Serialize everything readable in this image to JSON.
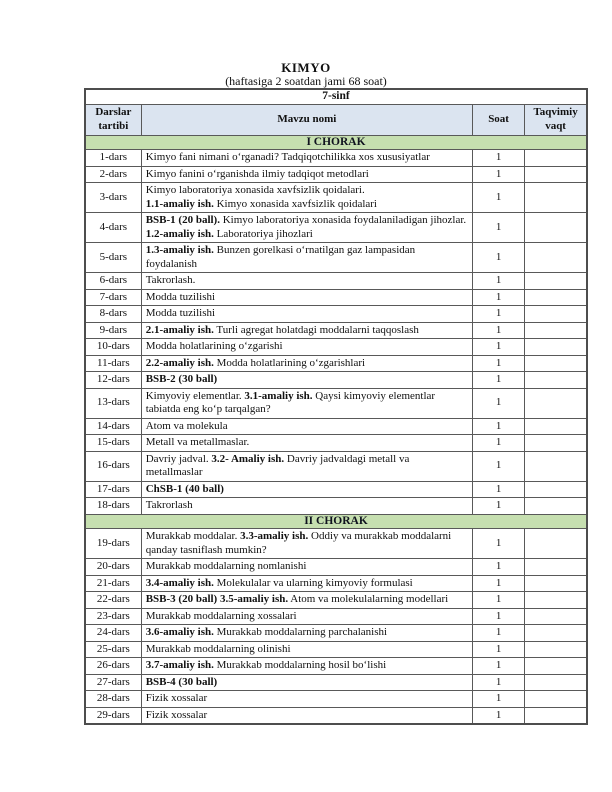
{
  "title": "KIMYO",
  "subtitle": "(haftasiga 2 soatdan jami 68 soat)",
  "colors": {
    "header_bg": "#dbe4f0",
    "section_bg": "#c6dfb0",
    "border": "#595959"
  },
  "table": {
    "class_label": "7-sinf",
    "columns": [
      "Darslar tartibi",
      "Mavzu nomi",
      "Soat",
      "Taqvimiy vaqt"
    ],
    "sections": [
      {
        "label": "I  CHORAK",
        "rows": [
          {
            "dars": "1-dars",
            "topic": [
              {
                "t": "Kimyo fani nimani oʻrganadi? Tadqiqotchilikka xos xususiyatlar"
              }
            ],
            "soat": "1",
            "vaqt": ""
          },
          {
            "dars": "2-dars",
            "topic": [
              {
                "t": "Kimyo fanini oʻrganishda ilmiy tadqiqot metodlari"
              }
            ],
            "soat": "1",
            "vaqt": ""
          },
          {
            "dars": "3-dars",
            "topic": [
              {
                "t": "Kimyo laboratoriya  xonasida xavfsizlik qoidalari."
              },
              {
                "br": true
              },
              {
                "t": "1.1-amaliy ish.",
                "b": true
              },
              {
                "t": " Kimyo xonasida xavfsizlik qoidalari"
              }
            ],
            "soat": "1",
            "vaqt": ""
          },
          {
            "dars": "4-dars",
            "topic": [
              {
                "t": "BSB-1 (20 ball).",
                "b": true
              },
              {
                "t": " Kimyo laboratoriya xonasida foydalaniladigan jihozlar."
              },
              {
                "br": true
              },
              {
                "t": "1.2-amaliy ish.",
                "b": true
              },
              {
                "t": " Laboratoriya jihozlari"
              }
            ],
            "soat": "1",
            "vaqt": ""
          },
          {
            "dars": "5-dars",
            "topic": [
              {
                "t": "1.3-amaliy ish.",
                "b": true
              },
              {
                "t": " Bunzen gorelkasi oʻrnatilgan gaz lampasidan foydalanish"
              }
            ],
            "soat": "1",
            "vaqt": ""
          },
          {
            "dars": "6-dars",
            "topic": [
              {
                "t": "Takrorlash."
              }
            ],
            "soat": "1",
            "vaqt": ""
          },
          {
            "dars": "7-dars",
            "topic": [
              {
                "t": "Modda tuzilishi"
              }
            ],
            "soat": "1",
            "vaqt": ""
          },
          {
            "dars": "8-dars",
            "topic": [
              {
                "t": "Modda tuzilishi"
              }
            ],
            "soat": "1",
            "vaqt": ""
          },
          {
            "dars": "9-dars",
            "topic": [
              {
                "t": "2.1-amaliy ish.",
                "b": true
              },
              {
                "t": " Turli agregat holatdagi moddalarni taqqoslash"
              }
            ],
            "soat": "1",
            "vaqt": ""
          },
          {
            "dars": "10-dars",
            "topic": [
              {
                "t": "Modda holatlarining oʻzgarishi"
              }
            ],
            "soat": "1",
            "vaqt": ""
          },
          {
            "dars": "11-dars",
            "topic": [
              {
                "t": "2.2-amaliy ish.",
                "b": true
              },
              {
                "t": " Modda holatlarining oʻzgarishlari"
              }
            ],
            "soat": "1",
            "vaqt": ""
          },
          {
            "dars": "12-dars",
            "topic": [
              {
                "t": "BSB-2 (30 ball)",
                "b": true
              }
            ],
            "soat": "1",
            "vaqt": ""
          },
          {
            "dars": "13-dars",
            "topic": [
              {
                "t": "Kimyoviy elementlar. "
              },
              {
                "t": "3.1-amaliy ish.",
                "b": true
              },
              {
                "t": " Qaysi kimyoviy elementlar tabiatda eng koʻp tarqalgan?"
              }
            ],
            "soat": "1",
            "vaqt": ""
          },
          {
            "dars": "14-dars",
            "topic": [
              {
                "t": "Atom va molekula"
              }
            ],
            "soat": "1",
            "vaqt": ""
          },
          {
            "dars": "15-dars",
            "topic": [
              {
                "t": "Metall va metallmaslar."
              }
            ],
            "soat": "1",
            "vaqt": ""
          },
          {
            "dars": "16-dars",
            "topic": [
              {
                "t": "Davriy jadval. "
              },
              {
                "t": "3.2- Amaliy ish.",
                "b": true
              },
              {
                "t": " Davriy jadvaldagi  metall va metallmaslar"
              }
            ],
            "soat": "1",
            "vaqt": ""
          },
          {
            "dars": "17-dars",
            "topic": [
              {
                "t": "ChSB-1 (40 ball)",
                "b": true
              }
            ],
            "soat": "1",
            "vaqt": ""
          },
          {
            "dars": "18-dars",
            "topic": [
              {
                "t": "Takrorlash"
              }
            ],
            "soat": "1",
            "vaqt": ""
          }
        ]
      },
      {
        "label": "II CHORAK",
        "rows": [
          {
            "dars": "19-dars",
            "topic": [
              {
                "t": "Murakkab moddalar. "
              },
              {
                "t": "3.3-amaliy ish.",
                "b": true
              },
              {
                "t": " Oddiy va murakkab moddalarni qanday tasniflash mumkin?"
              }
            ],
            "soat": "1",
            "vaqt": ""
          },
          {
            "dars": "20-dars",
            "topic": [
              {
                "t": "Murakkab moddalarning nomlanishi"
              }
            ],
            "soat": "1",
            "vaqt": ""
          },
          {
            "dars": "21-dars",
            "topic": [
              {
                "t": "3.4-amaliy ish.",
                "b": true
              },
              {
                "t": " Molekulalar va ularning kimyoviy formulasi"
              }
            ],
            "soat": "1",
            "vaqt": ""
          },
          {
            "dars": "22-dars",
            "topic": [
              {
                "t": "BSB-3 (20 ball) 3.5-amaliy ish.",
                "b": true
              },
              {
                "t": " Atom va molekulalarning modellari"
              }
            ],
            "soat": "1",
            "vaqt": ""
          },
          {
            "dars": "23-dars",
            "topic": [
              {
                "t": "Murakkab moddalarning xossalari"
              }
            ],
            "soat": "1",
            "vaqt": ""
          },
          {
            "dars": "24-dars",
            "topic": [
              {
                "t": "3.6-amaliy ish.",
                "b": true
              },
              {
                "t": " Murakkab moddalarning parchalanishi"
              }
            ],
            "soat": "1",
            "vaqt": ""
          },
          {
            "dars": "25-dars",
            "topic": [
              {
                "t": "Murakkab moddalarning olinishi"
              }
            ],
            "soat": "1",
            "vaqt": ""
          },
          {
            "dars": "26-dars",
            "topic": [
              {
                "t": "3.7-amaliy ish.",
                "b": true
              },
              {
                "t": " Murakkab moddalarning hosil boʻlishi"
              }
            ],
            "soat": "1",
            "vaqt": ""
          },
          {
            "dars": "27-dars",
            "topic": [
              {
                "t": " BSB-4 (30 ball)",
                "b": true
              }
            ],
            "soat": "1",
            "vaqt": ""
          },
          {
            "dars": "28-dars",
            "topic": [
              {
                "t": "Fizik xossalar"
              }
            ],
            "soat": "1",
            "vaqt": ""
          },
          {
            "dars": "29-dars",
            "topic": [
              {
                "t": "Fizik xossalar"
              }
            ],
            "soat": "1",
            "vaqt": ""
          }
        ]
      }
    ]
  }
}
